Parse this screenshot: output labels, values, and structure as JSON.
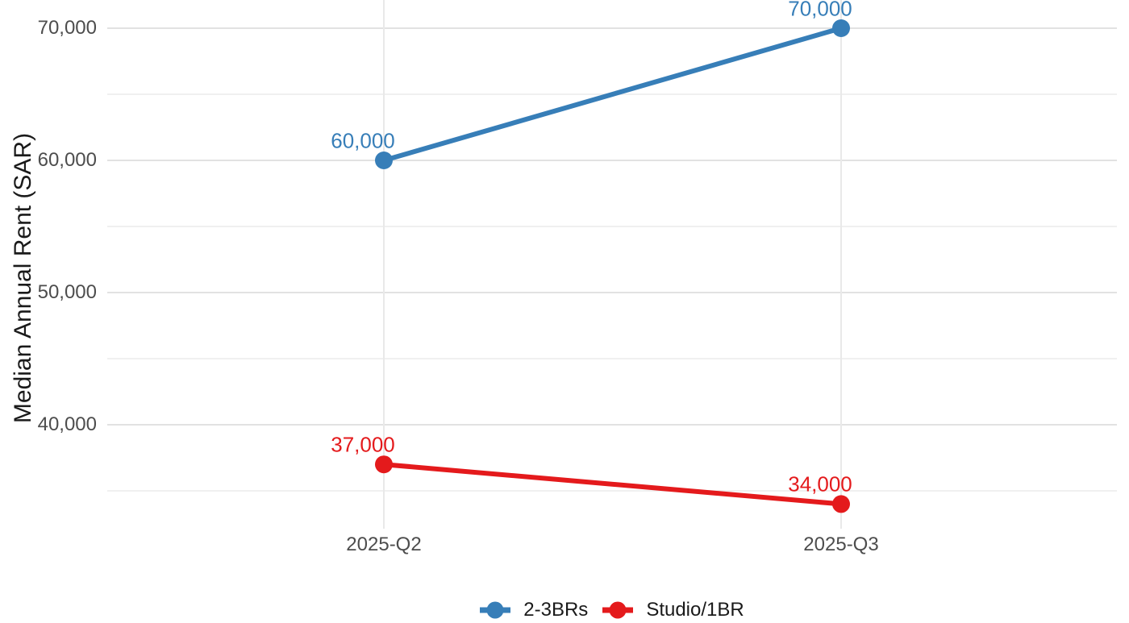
{
  "chart_data": {
    "type": "line",
    "title": "",
    "ylabel": "Median Annual Rent (SAR)",
    "xlabel": "",
    "categories": [
      "2025-Q2",
      "2025-Q3"
    ],
    "series": [
      {
        "name": "2-3BRs",
        "color": "#377EB8",
        "values": [
          60000,
          70000
        ],
        "point_labels": [
          "60,000",
          "70,000"
        ]
      },
      {
        "name": "Studio/1BR",
        "color": "#E41A1C",
        "values": [
          37000,
          34000
        ],
        "point_labels": [
          "37,000",
          "34,000"
        ]
      }
    ],
    "yticks": [
      {
        "value": 70000,
        "label": "70,000"
      },
      {
        "value": 60000,
        "label": "60,000"
      },
      {
        "value": 50000,
        "label": "50,000"
      },
      {
        "value": 40000,
        "label": "40,000"
      }
    ],
    "yticks_minor": [
      65000,
      55000,
      45000,
      35000
    ],
    "ylim": [
      32100,
      72100
    ],
    "grid": true,
    "legend_position": "bottom"
  }
}
